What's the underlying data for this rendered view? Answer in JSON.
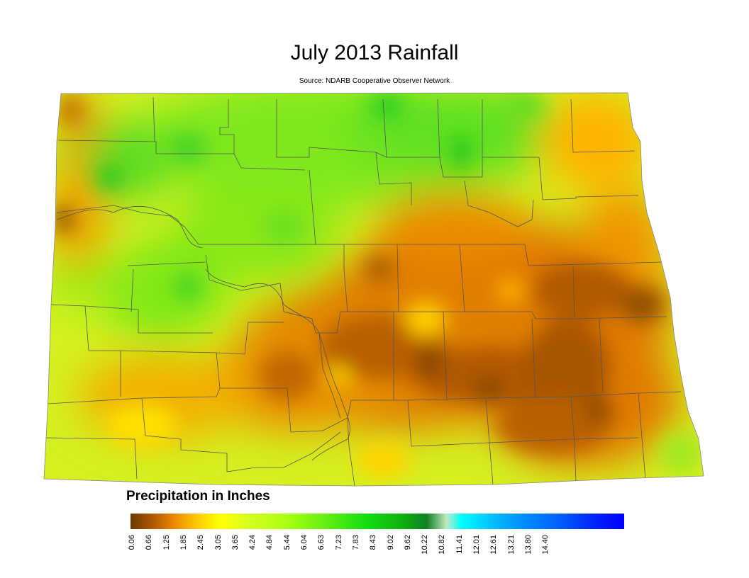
{
  "title": "July 2013 Rainfall",
  "source": "Source: NDARB Cooperative Observer Network",
  "legend": {
    "title": "Precipitation in Inches",
    "ticks": [
      "0.06",
      "0.66",
      "1.25",
      "1.85",
      "2.45",
      "3.05",
      "3.65",
      "4.24",
      "4.84",
      "5.44",
      "6.04",
      "6.63",
      "7.23",
      "7.83",
      "8.43",
      "9.02",
      "9.62",
      "10.22",
      "10.82",
      "11.41",
      "12.01",
      "12.61",
      "13.21",
      "13.80",
      "14.40"
    ]
  },
  "colors": {
    "dry": "#8a4a00",
    "low": "#e07a00",
    "mid": "#ffd400",
    "moderate": "#c8f020",
    "wet": "#40dd20",
    "border": "#555555"
  }
}
